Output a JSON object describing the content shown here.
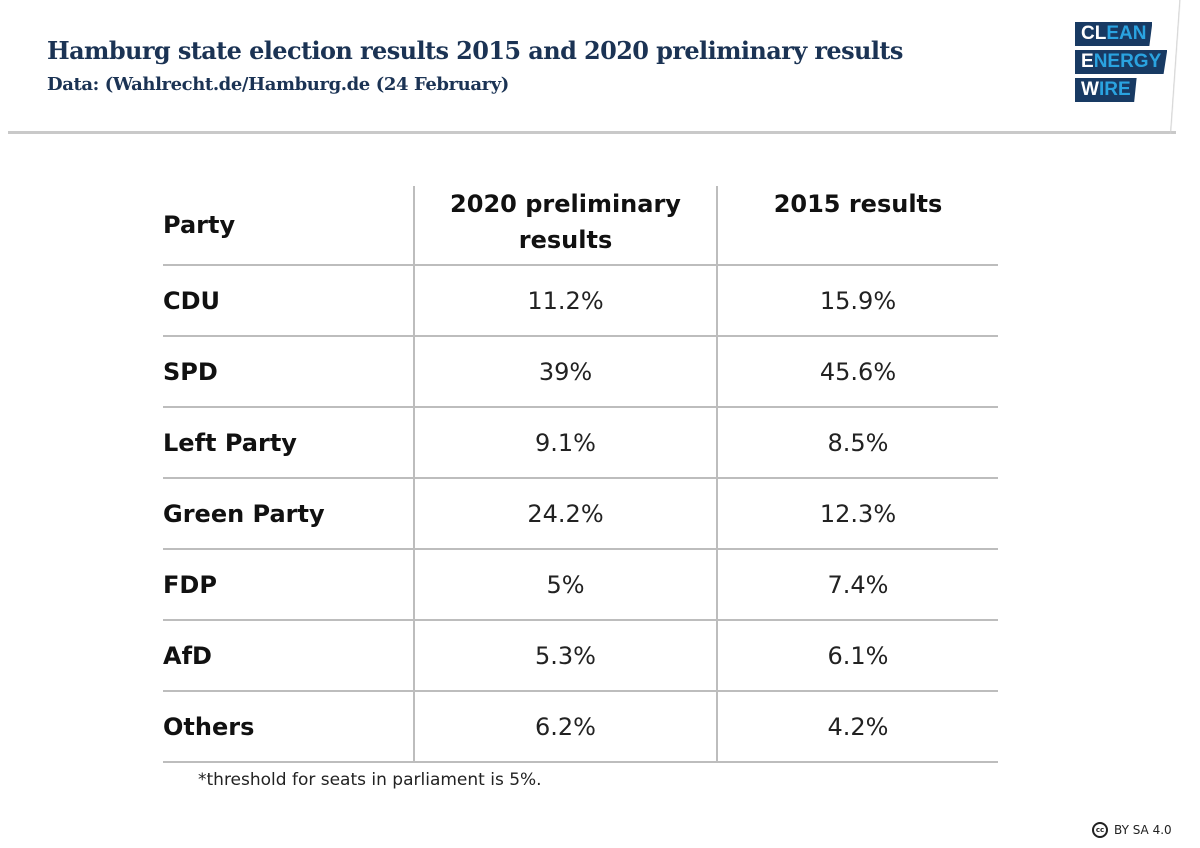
{
  "header": {
    "title": "Hamburg state election results 2015 and 2020 preliminary results",
    "subtitle": "Data: (Wahlrecht.de/Hamburg.de (24 February)"
  },
  "logo": {
    "lines": [
      {
        "white": "CL",
        "blue": "EAN"
      },
      {
        "white": "E",
        "blue": "NERGY"
      },
      {
        "white": "W",
        "blue": "IRE"
      }
    ],
    "colors": {
      "background": "#183a63",
      "accent": "#2aa3e0",
      "white": "#ffffff"
    }
  },
  "chart_data": {
    "type": "table",
    "title": "Hamburg state election results 2015 and 2020 preliminary results",
    "columns": [
      "Party",
      "2020 preliminary results",
      "2015 results"
    ],
    "header_lines": {
      "col2_line1": "2020 preliminary",
      "col2_line2": "results"
    },
    "rows": [
      {
        "party": "CDU",
        "v2020": "11.2%",
        "v2015": "15.9%"
      },
      {
        "party": "SPD",
        "v2020": "39%",
        "v2015": "45.6%"
      },
      {
        "party": "Left Party",
        "v2020": "9.1%",
        "v2015": "8.5%"
      },
      {
        "party": "Green Party",
        "v2020": "24.2%",
        "v2015": "12.3%"
      },
      {
        "party": "FDP",
        "v2020": "5%",
        "v2015": "7.4%"
      },
      {
        "party": "AfD",
        "v2020": "5.3%",
        "v2015": "6.1%"
      },
      {
        "party": "Others",
        "v2020": "6.2%",
        "v2015": "4.2%"
      }
    ],
    "footnote": "*threshold for seats in parliament is 5%."
  },
  "license": {
    "icon": "cc-icon",
    "icon_text": "cc",
    "text": "BY SA 4.0"
  }
}
